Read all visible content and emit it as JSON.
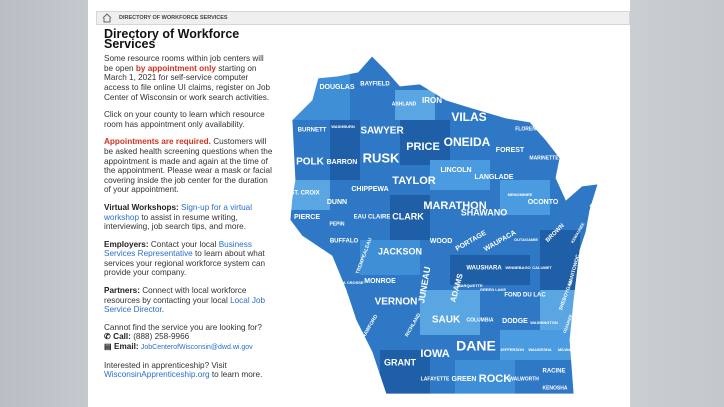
{
  "breadcrumb": "DIRECTORY OF WORKFORCE SERVICES",
  "title": "Directory of Workforce Services",
  "paragraphs": [
    [
      "Some resource rooms within job centers will be open ",
      "by appointment only",
      " starting on March 1, 2021 for self-service computer access to file online UI claims, register on Job Center of Wisconsin or work search activities."
    ],
    [
      "Click on your county to learn which resource room has appointment only availability."
    ],
    [
      "Appointments are required.",
      " Customers will be asked health screening questions when the appointment is made and again at the time of the appointment. Please wear a mask or facial covering inside the job center for the duration of your appointment."
    ],
    [
      "Virtual Workshops:",
      "Sign-up for a virtual workshop",
      " to assist in resume writing, interviewing, job search tips, and more."
    ],
    [
      "Employers:",
      " Contact your local ",
      "Business Services Representative",
      " to learn about what services your regional workforce system can provide your company."
    ],
    [
      "Partners:",
      " Connect with local workforce resources by contacting your local ",
      "Local Job Service Director",
      "."
    ]
  ],
  "contact": {
    "question": "Cannot find the service you are looking for?",
    "call_label": "Call:",
    "phone": "(888) 258-9966",
    "email_label": "Email:",
    "email": "JobCenterofWisconsin@dwd.wi.gov"
  },
  "apprenticeship": [
    "Interested in apprenticeship? Visit ",
    "WisconsinApprenticeship.org",
    " to learn more."
  ],
  "map": {
    "counties": [
      "DOUGLAS",
      "BAYFIELD",
      "ASHLAND",
      "IRON",
      "VILAS",
      "BURNETT",
      "WASHBURN",
      "SAWYER",
      "FLORENCE",
      "FOREST",
      "PRICE",
      "ONEIDA",
      "MARINETTE",
      "POLK",
      "BARRON",
      "RUSK",
      "LINCOLN",
      "LANGLADE",
      "TAYLOR",
      "ST. CROIX",
      "CHIPPEWA",
      "MENOMINEE",
      "OCONTO",
      "DOOR",
      "DUNN",
      "MARATHON",
      "SHAWANO",
      "PIERCE",
      "EAU CLAIRE",
      "CLARK",
      "PEPIN",
      "BUFFALO",
      "WOOD",
      "PORTAGE",
      "WAUPACA",
      "OUTAGAMIE",
      "BROWN",
      "KEWAUNEE",
      "TREMPEALEAU",
      "JACKSON",
      "MANITOWOC",
      "CALUMET",
      "WINNEBAGO",
      "WAUSHARA",
      "JUNEAU",
      "ADAMS",
      "MONROE",
      "LA CROSSE",
      "MARQUETTE",
      "GREEN LAKE",
      "FOND DU LAC",
      "SHEBOYGAN",
      "VERNON",
      "SAUK",
      "COLUMBIA",
      "DODGE",
      "WASHINGTON",
      "OZAUKEE",
      "CRAWFORD",
      "RICHLAND",
      "DANE",
      "IOWA",
      "JEFFERSON",
      "WAUKESHA",
      "MILWAUKEE",
      "GRANT",
      "LAFAYETTE",
      "GREEN",
      "ROCK",
      "WALWORTH",
      "RACINE",
      "KENOSHA"
    ]
  }
}
